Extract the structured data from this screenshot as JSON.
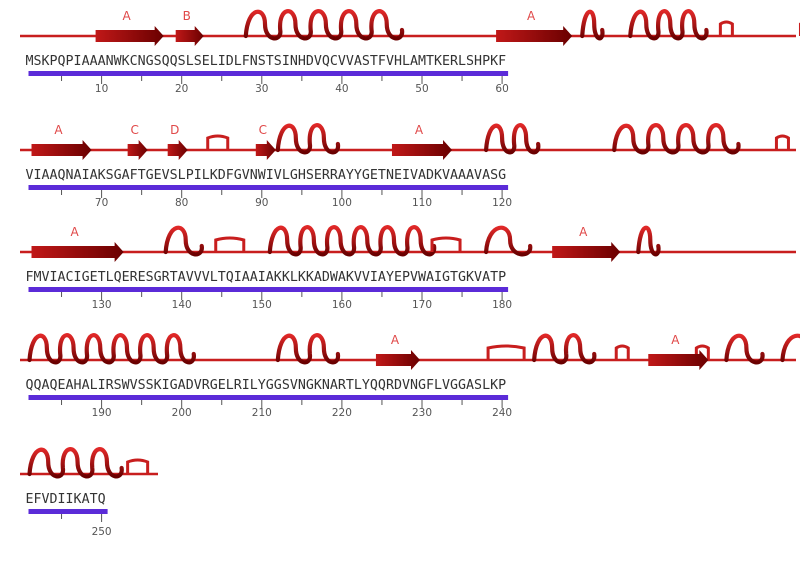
{
  "sequence": {
    "rows": [
      "MSKPQPIAAANWKCNGSQQSLSELIDLFNSTSINHDVQCVVASTFVHLAMTKERLSHPKF",
      "VIAAQNAIAKSGAFTGEVSLPILKDFGVNWIVLGHSERRAYYGETNEIVADKVAAAVASG",
      "FMVIACIGETLQERESGRTAVVVLTQIAAIAKKLKKADWAKVVIAYEPVWAIGTGKVATP",
      "QQAQEAHALIRSWVSSKIGADVRGELRILYGGSVNGKNARTLYQQRDVNGFLVGGASLKP",
      "EFVDIIKATQ"
    ],
    "ruler_numbers": [
      [
        "10",
        "20",
        "30",
        "40",
        "50",
        "60"
      ],
      [
        "70",
        "80",
        "90",
        "100",
        "110",
        "120"
      ],
      [
        "130",
        "140",
        "150",
        "160",
        "170",
        "180"
      ],
      [
        "190",
        "200",
        "210",
        "220",
        "230",
        "240"
      ],
      [
        "250"
      ]
    ]
  },
  "strand_labels": [
    "A",
    "B",
    "A",
    "A",
    "A",
    "C",
    "D",
    "C",
    "A",
    "A",
    "A",
    "A",
    "A"
  ],
  "colors": {
    "coil": "#c81e1e",
    "helix_dark": "#6a0000",
    "helix_light": "#e02828",
    "strand_dark": "#6a0000",
    "strand_light": "#c01818",
    "label": "#e04848",
    "ruler_bar": "#5b2bd8",
    "tick": "#555555",
    "residue_first": "#aaaaaa",
    "residue": "#333333"
  }
}
